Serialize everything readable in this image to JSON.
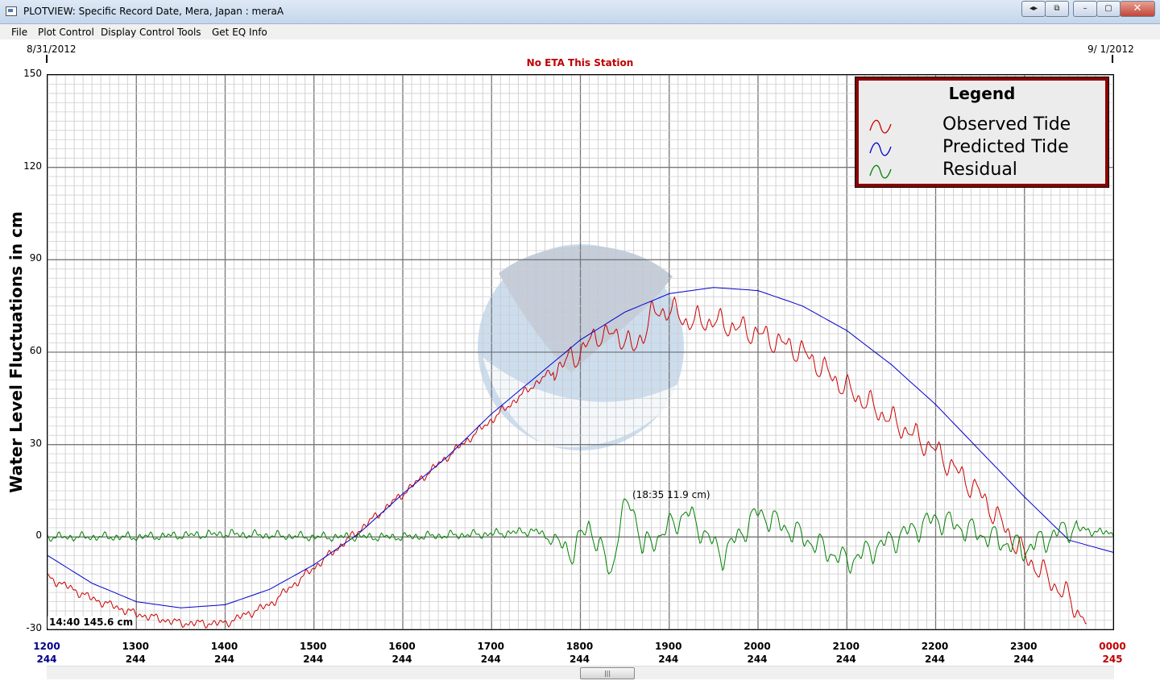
{
  "window": {
    "title": "PLOTVIEW: Specific Record Date, Mera, Japan : meraA",
    "buttons": {
      "nav": "◂▸",
      "restore_small": "⧉",
      "minimize": "–",
      "maximize": "▢",
      "close": "✕"
    }
  },
  "menu": [
    "File",
    "Plot Control",
    "Display Control",
    "Tools",
    "Get EQ Info"
  ],
  "header": {
    "start_date": "8/31/2012",
    "end_date": "9/ 1/2012",
    "eta": "No ETA This Station"
  },
  "readout": "14:40 145.6 cm",
  "annotation": "(18:35  11.9 cm)",
  "legend": {
    "title": "Legend",
    "items": [
      {
        "label": "Observed Tide",
        "color": "#cc0000",
        "icon": "wave-icon"
      },
      {
        "label": "Predicted Tide",
        "color": "#0000cc",
        "icon": "wave-icon"
      },
      {
        "label": "Residual",
        "color": "#008000",
        "icon": "wave-icon"
      }
    ]
  },
  "scroll_thumb": "|||",
  "chart_data": {
    "type": "line",
    "ylabel": "Water Level Fluctuations in cm",
    "ylim": [
      -30,
      150
    ],
    "yticks": [
      "150",
      "120",
      "90",
      "60",
      "30",
      "0",
      "-30"
    ],
    "xlim_hours": [
      12,
      24
    ],
    "x_ticks": [
      {
        "time": "1200",
        "day": "244"
      },
      {
        "time": "1300",
        "day": "244"
      },
      {
        "time": "1400",
        "day": "244"
      },
      {
        "time": "1500",
        "day": "244"
      },
      {
        "time": "1600",
        "day": "244"
      },
      {
        "time": "1700",
        "day": "244"
      },
      {
        "time": "1800",
        "day": "244"
      },
      {
        "time": "1900",
        "day": "244"
      },
      {
        "time": "2000",
        "day": "244"
      },
      {
        "time": "2100",
        "day": "244"
      },
      {
        "time": "2200",
        "day": "244"
      },
      {
        "time": "2300",
        "day": "244"
      },
      {
        "time": "0000",
        "day": "245"
      }
    ],
    "grid": true,
    "series": [
      {
        "name": "Observed Tide",
        "color": "#cc0000",
        "x": [
          12.0,
          12.5,
          13.0,
          13.5,
          14.0,
          14.5,
          15.0,
          15.5,
          16.0,
          16.5,
          17.0,
          17.5,
          18.0,
          18.2,
          18.5,
          18.6,
          18.8,
          19.0,
          19.2,
          19.5,
          20.0,
          20.5,
          21.0,
          21.5,
          22.0,
          22.5,
          23.0,
          23.5,
          23.7
        ],
        "y": [
          -13,
          -20,
          -25,
          -28,
          -28,
          -22,
          -10,
          2,
          14,
          26,
          38,
          50,
          60,
          66,
          65,
          60,
          72,
          74,
          70,
          70,
          66,
          60,
          48,
          38,
          28,
          14,
          -6,
          -20,
          -28
        ]
      },
      {
        "name": "Predicted Tide",
        "color": "#0000cc",
        "x": [
          12.0,
          12.5,
          13.0,
          13.5,
          14.0,
          14.5,
          15.0,
          15.5,
          16.0,
          16.5,
          17.0,
          17.5,
          18.0,
          18.5,
          19.0,
          19.5,
          20.0,
          20.5,
          21.0,
          21.5,
          22.0,
          22.5,
          23.0,
          23.5,
          24.0
        ],
        "y": [
          -6,
          -15,
          -21,
          -23,
          -22,
          -17,
          -9,
          1,
          14,
          26,
          40,
          52,
          64,
          73,
          79,
          81,
          80,
          75,
          67,
          56,
          43,
          28,
          13,
          -1,
          -5
        ]
      },
      {
        "name": "Residual",
        "color": "#008000",
        "x": [
          12.0,
          13.0,
          14.0,
          15.0,
          16.0,
          17.0,
          17.5,
          17.9,
          18.1,
          18.35,
          18.45,
          18.58,
          18.7,
          19.2,
          19.6,
          20.0,
          21.0,
          22.0,
          23.0,
          23.5,
          24.0
        ],
        "y": [
          0,
          0,
          1,
          0,
          0,
          1,
          2,
          -5,
          4,
          -12,
          6,
          11.9,
          -4,
          8,
          -6,
          8,
          -8,
          6,
          -4,
          3,
          1
        ]
      }
    ]
  }
}
